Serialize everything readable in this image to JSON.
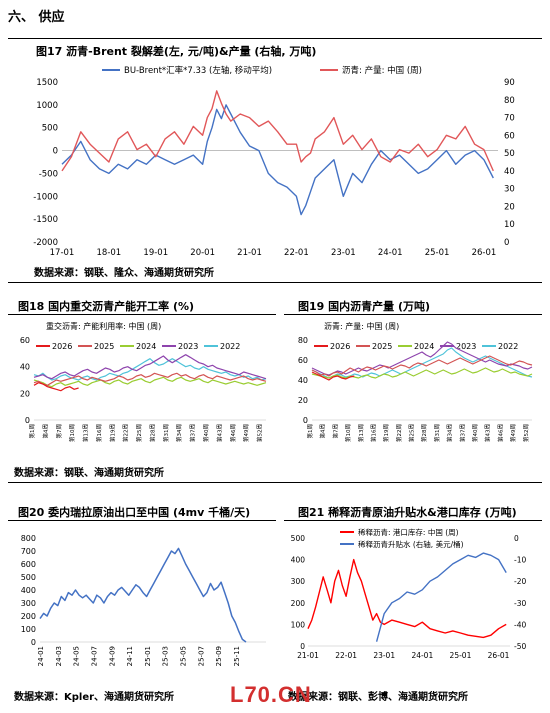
{
  "section": {
    "title": "六、 供应"
  },
  "fig17": {
    "title": "图17  沥青-Brent 裂解差(左, 元/吨)&产量 (右轴, 万吨)",
    "source": "数据来源：钢联、隆众、海通期货研究所"
  },
  "fig18": {
    "title": "图18  国内重交沥青产能开工率 (%)",
    "source": "数据来源：钢联、海通期货研究所"
  },
  "fig19": {
    "title": "图19  国内沥青产量 (万吨)",
    "source": ""
  },
  "fig20": {
    "title": "图20  委内瑞拉原油出口至中国 (4mv 千桶/天)",
    "source": "数据来源：Kpler、海通期货研究所"
  },
  "fig21": {
    "title": "图21  稀释沥青原油升贴水&港口库存 (万吨)",
    "source": "数据来源：钢联、彭博、海通期货研究所"
  },
  "watermark": "L70.CN",
  "chart_data": [
    {
      "id": "c17",
      "type": "line",
      "legend": [
        "BU-Brent*汇率*7.33 (左轴, 移动平均)",
        "沥青: 产量: 中国 (周)"
      ],
      "colors": [
        "#4472C4",
        "#E15759"
      ],
      "x_ticks": [
        "17-01",
        "18-01",
        "19-01",
        "20-01",
        "21-01",
        "22-01",
        "23-01",
        "24-01",
        "25-01",
        "26-01"
      ],
      "y_left": {
        "min": -2000,
        "max": 1500,
        "ticks": [
          -2000,
          -1500,
          -1000,
          -500,
          0,
          500,
          1000,
          1500
        ]
      },
      "y_right": {
        "min": 0,
        "max": 90,
        "ticks": [
          0,
          10,
          20,
          30,
          40,
          50,
          60,
          70,
          80,
          90
        ]
      },
      "series": [
        {
          "name": "BU-Brent*汇率*7.33 (左轴, 移动平均)",
          "axis": "left",
          "x": [
            0,
            0.2,
            0.4,
            0.6,
            0.8,
            1,
            1.2,
            1.4,
            1.6,
            1.8,
            2,
            2.2,
            2.4,
            2.6,
            2.8,
            3,
            3.1,
            3.2,
            3.3,
            3.4,
            3.5,
            3.6,
            3.8,
            4,
            4.2,
            4.4,
            4.6,
            4.8,
            5,
            5.1,
            5.2,
            5.3,
            5.4,
            5.6,
            5.8,
            6,
            6.2,
            6.4,
            6.6,
            6.8,
            7,
            7.2,
            7.4,
            7.6,
            7.8,
            8,
            8.2,
            8.4,
            8.6,
            8.8,
            9,
            9.2
          ],
          "values": [
            -300,
            -100,
            200,
            -200,
            -400,
            -500,
            -300,
            -400,
            -200,
            -300,
            -100,
            -200,
            -300,
            -200,
            -100,
            -300,
            200,
            500,
            900,
            700,
            1000,
            800,
            400,
            100,
            0,
            -500,
            -700,
            -800,
            -1000,
            -1400,
            -1200,
            -900,
            -600,
            -400,
            -200,
            -1000,
            -500,
            -700,
            -300,
            0,
            -200,
            -100,
            -300,
            -500,
            -400,
            -200,
            0,
            -300,
            -100,
            0,
            -200,
            -600
          ]
        },
        {
          "name": "沥青: 产量: 中国 (周)",
          "axis": "right",
          "x": [
            0,
            0.2,
            0.4,
            0.6,
            0.8,
            1,
            1.2,
            1.4,
            1.6,
            1.8,
            2,
            2.2,
            2.4,
            2.6,
            2.8,
            3,
            3.1,
            3.2,
            3.3,
            3.4,
            3.5,
            3.6,
            3.8,
            4,
            4.2,
            4.4,
            4.6,
            4.8,
            5,
            5.1,
            5.2,
            5.3,
            5.4,
            5.6,
            5.8,
            6,
            6.2,
            6.4,
            6.6,
            6.8,
            7,
            7.2,
            7.4,
            7.6,
            7.8,
            8,
            8.2,
            8.4,
            8.6,
            8.8,
            9,
            9.2
          ],
          "values": [
            40,
            48,
            62,
            55,
            50,
            45,
            58,
            62,
            52,
            55,
            48,
            58,
            62,
            55,
            65,
            60,
            70,
            75,
            85,
            78,
            72,
            68,
            72,
            70,
            65,
            68,
            62,
            55,
            55,
            45,
            48,
            50,
            58,
            62,
            70,
            55,
            60,
            52,
            58,
            48,
            45,
            52,
            50,
            55,
            48,
            52,
            60,
            58,
            65,
            55,
            52,
            40
          ]
        }
      ]
    },
    {
      "id": "c18",
      "type": "line",
      "legend_title": "重交沥青: 产能利用率: 中国 (周)",
      "legend": [
        "2026",
        "2025",
        "2024",
        "2023",
        "2022"
      ],
      "colors": [
        "#E41A1C",
        "#D35454",
        "#9ACD32",
        "#8E44AD",
        "#4FC3D9"
      ],
      "y": {
        "min": 0,
        "max": 60,
        "ticks": [
          0,
          20,
          40,
          60
        ]
      },
      "x_ticks": [
        "第1周",
        "第4周",
        "第7周",
        "第10周",
        "第13周",
        "第16周",
        "第19周",
        "第22周",
        "第25周",
        "第28周",
        "第31周",
        "第34周",
        "第37周",
        "第40周",
        "第43周",
        "第46周",
        "第49周",
        "第52周"
      ],
      "series": [
        {
          "name": "2026",
          "values": [
            26,
            28,
            27,
            25,
            24,
            23,
            22,
            24,
            25,
            23,
            24
          ]
        },
        {
          "name": "2025",
          "values": [
            28,
            29,
            27,
            26,
            28,
            30,
            29,
            30,
            31,
            32,
            33,
            31,
            30,
            32,
            31,
            30,
            29,
            30,
            31,
            33,
            32,
            30,
            31,
            33,
            34,
            32,
            33,
            35,
            34,
            33,
            32,
            34,
            35,
            33,
            34,
            32,
            31,
            33,
            34,
            32,
            31,
            33,
            32,
            31,
            30,
            31,
            32,
            33,
            31,
            30,
            31,
            30,
            29
          ]
        },
        {
          "name": "2024",
          "values": [
            30,
            29,
            28,
            26,
            25,
            27,
            28,
            26,
            27,
            28,
            29,
            27,
            26,
            28,
            29,
            30,
            28,
            27,
            29,
            30,
            28,
            27,
            29,
            30,
            31,
            29,
            28,
            30,
            31,
            32,
            30,
            29,
            31,
            32,
            30,
            29,
            30,
            31,
            29,
            28,
            30,
            29,
            28,
            27,
            28,
            29,
            28,
            27,
            28,
            27,
            26,
            27,
            28
          ]
        },
        {
          "name": "2023",
          "values": [
            32,
            33,
            34,
            32,
            31,
            33,
            35,
            36,
            34,
            33,
            35,
            37,
            38,
            36,
            35,
            37,
            39,
            38,
            36,
            37,
            39,
            40,
            38,
            37,
            39,
            41,
            42,
            44,
            46,
            48,
            45,
            43,
            45,
            47,
            49,
            47,
            45,
            43,
            42,
            40,
            41,
            39,
            38,
            37,
            36,
            35,
            34,
            36,
            35,
            34,
            33,
            32,
            31
          ]
        },
        {
          "name": "2022",
          "values": [
            34,
            33,
            35,
            32,
            30,
            31,
            33,
            34,
            32,
            31,
            30,
            32,
            33,
            31,
            30,
            32,
            33,
            35,
            34,
            33,
            35,
            36,
            38,
            40,
            42,
            44,
            46,
            43,
            41,
            42,
            44,
            46,
            44,
            42,
            40,
            41,
            39,
            38,
            40,
            38,
            37,
            36,
            35,
            36,
            34,
            33,
            34,
            32,
            33,
            31,
            32,
            30,
            31
          ]
        }
      ]
    },
    {
      "id": "c19",
      "type": "line",
      "legend_title": "沥青: 产量: 中国 (周)",
      "legend": [
        "2026",
        "2025",
        "2024",
        "2023",
        "2022"
      ],
      "colors": [
        "#E41A1C",
        "#D35454",
        "#9ACD32",
        "#8E44AD",
        "#4FC3D9"
      ],
      "y": {
        "min": 0,
        "max": 80,
        "ticks": [
          0,
          20,
          40,
          60,
          80
        ]
      },
      "x_ticks": [
        "第1周",
        "第4周",
        "第7周",
        "第10周",
        "第13周",
        "第16周",
        "第19周",
        "第22周",
        "第25周",
        "第28周",
        "第31周",
        "第34周",
        "第37周",
        "第40周",
        "第43周",
        "第46周",
        "第49周",
        "第52周"
      ],
      "series": [
        {
          "name": "2026",
          "values": [
            48,
            46,
            44,
            42,
            40,
            43,
            44,
            42,
            41,
            43,
            44
          ]
        },
        {
          "name": "2025",
          "values": [
            50,
            48,
            45,
            46,
            44,
            47,
            48,
            46,
            49,
            52,
            50,
            48,
            51,
            53,
            52,
            50,
            52,
            54,
            53,
            51,
            53,
            55,
            54,
            52,
            55,
            57,
            56,
            54,
            56,
            58,
            60,
            58,
            56,
            58,
            60,
            62,
            60,
            58,
            56,
            58,
            60,
            62,
            64,
            62,
            60,
            58,
            56,
            55,
            57,
            59,
            58,
            56,
            55
          ]
        },
        {
          "name": "2024",
          "values": [
            46,
            45,
            44,
            43,
            42,
            44,
            45,
            43,
            42,
            44,
            43,
            42,
            44,
            45,
            43,
            42,
            44,
            46,
            45,
            43,
            44,
            46,
            48,
            46,
            44,
            46,
            48,
            50,
            48,
            46,
            48,
            50,
            48,
            46,
            47,
            49,
            51,
            49,
            47,
            48,
            50,
            52,
            50,
            48,
            49,
            51,
            49,
            47,
            48,
            46,
            45,
            44,
            46
          ]
        },
        {
          "name": "2023",
          "values": [
            52,
            50,
            48,
            46,
            45,
            47,
            49,
            48,
            46,
            48,
            50,
            52,
            50,
            49,
            51,
            53,
            55,
            54,
            52,
            54,
            56,
            58,
            60,
            62,
            64,
            66,
            68,
            65,
            63,
            66,
            70,
            74,
            78,
            76,
            72,
            70,
            68,
            66,
            64,
            62,
            60,
            58,
            60,
            58,
            56,
            55,
            54,
            56,
            55,
            54,
            52,
            51,
            53
          ]
        },
        {
          "name": "2022",
          "values": [
            50,
            48,
            46,
            44,
            42,
            44,
            46,
            45,
            43,
            44,
            46,
            45,
            43,
            45,
            47,
            46,
            44,
            46,
            48,
            50,
            48,
            46,
            48,
            50,
            52,
            54,
            56,
            58,
            60,
            62,
            64,
            66,
            70,
            72,
            68,
            65,
            62,
            60,
            58,
            60,
            62,
            64,
            62,
            60,
            58,
            56,
            54,
            52,
            50,
            48,
            46,
            44,
            43
          ]
        }
      ]
    },
    {
      "id": "c20",
      "type": "line",
      "colors": [
        "#4472C4"
      ],
      "y": {
        "min": 0,
        "max": 800,
        "ticks": [
          0,
          100,
          200,
          300,
          400,
          500,
          600,
          700,
          800
        ]
      },
      "x_ticks": [
        "24-01",
        "24-03",
        "24-05",
        "24-07",
        "24-09",
        "24-11",
        "25-01",
        "25-03",
        "25-05",
        "25-07",
        "25-09",
        "25-11"
      ],
      "series": [
        {
          "name": "",
          "values": [
            180,
            220,
            200,
            260,
            300,
            280,
            350,
            320,
            380,
            360,
            400,
            360,
            340,
            360,
            330,
            300,
            360,
            340,
            300,
            350,
            380,
            360,
            400,
            420,
            390,
            360,
            400,
            440,
            420,
            380,
            350,
            400,
            450,
            500,
            550,
            600,
            650,
            700,
            680,
            720,
            660,
            600,
            550,
            500,
            450,
            400,
            350,
            380,
            450,
            400,
            420,
            460,
            380,
            300,
            200,
            150,
            80,
            20,
            0
          ]
        }
      ]
    },
    {
      "id": "c21",
      "type": "line",
      "legend": [
        "稀释沥青: 港口库存: 中国 (周)",
        "稀释沥青升贴水 (右轴, 美元/桶)"
      ],
      "colors": [
        "#FF0000",
        "#4472C4"
      ],
      "x_ticks": [
        "21-01",
        "22-01",
        "23-01",
        "24-01",
        "25-01",
        "26-01"
      ],
      "y_left": {
        "min": 0,
        "max": 500,
        "ticks": [
          0,
          100,
          200,
          300,
          400,
          500
        ]
      },
      "y_right": {
        "min": -50,
        "max": 0,
        "ticks": [
          0,
          -10,
          -20,
          -30,
          -40,
          -50
        ]
      },
      "series": [
        {
          "name": "稀释沥青: 港口库存: 中国 (周)",
          "axis": "left",
          "x": [
            0,
            0.1,
            0.2,
            0.3,
            0.4,
            0.5,
            0.6,
            0.7,
            0.8,
            0.9,
            1,
            1.1,
            1.2,
            1.3,
            1.4,
            1.5,
            1.6,
            1.7,
            1.8,
            1.9,
            2,
            2.2,
            2.4,
            2.6,
            2.8,
            3,
            3.2,
            3.4,
            3.6,
            3.8,
            4,
            4.2,
            4.4,
            4.6,
            4.8,
            5,
            5.2
          ],
          "values": [
            80,
            120,
            180,
            250,
            320,
            260,
            200,
            300,
            350,
            280,
            230,
            320,
            400,
            340,
            300,
            240,
            180,
            120,
            150,
            110,
            100,
            120,
            110,
            100,
            90,
            110,
            80,
            70,
            60,
            70,
            60,
            50,
            45,
            40,
            50,
            80,
            100
          ]
        },
        {
          "name": "稀释沥青升贴水 (右轴, 美元/桶)",
          "axis": "right",
          "x": [
            1.8,
            2,
            2.2,
            2.4,
            2.6,
            2.8,
            3,
            3.2,
            3.4,
            3.6,
            3.8,
            4,
            4.2,
            4.4,
            4.6,
            4.8,
            5,
            5.2
          ],
          "values": [
            -48,
            -35,
            -30,
            -28,
            -25,
            -26,
            -24,
            -20,
            -18,
            -15,
            -12,
            -10,
            -8,
            -9,
            -7,
            -8,
            -10,
            -16
          ]
        }
      ]
    }
  ]
}
